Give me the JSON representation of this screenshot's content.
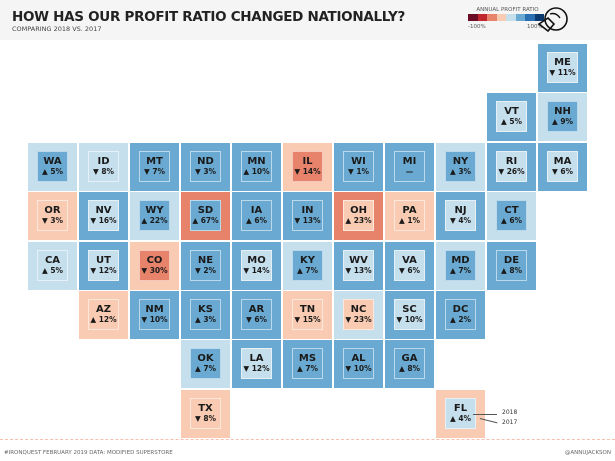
{
  "header": {
    "title": "HOW HAS OUR PROFIT RATIO CHANGED NATIONALLY?",
    "subtitle": "COMPARING 2018 VS. 2017"
  },
  "legend": {
    "title": "ANNUAL PROFIT RATIO",
    "min_label": "-100%",
    "max_label": "100%",
    "colors": [
      "#6b0d24",
      "#c0282d",
      "#e7836b",
      "#f9cbb2",
      "#c6dfed",
      "#6aaad2",
      "#2a6fb1",
      "#0c3a6e"
    ]
  },
  "palette": {
    "light-blue": "#c6dfed",
    "mid-blue": "#6aaad2",
    "salmon": "#f9cbb2",
    "red": "#e8836b"
  },
  "chart_data": {
    "type": "tile-map",
    "color_scale": {
      "metric": "Annual profit ratio",
      "range": [
        "-100%",
        "100%"
      ]
    },
    "annotation": {
      "year_2018": "2018",
      "year_2017": "2017"
    },
    "states": [
      {
        "abbr": "ME",
        "change": "▼ 11%",
        "outer": "mid-blue",
        "inner": "light-blue"
      },
      {
        "abbr": "VT",
        "change": "▲ 5%",
        "outer": "mid-blue",
        "inner": "light-blue"
      },
      {
        "abbr": "NH",
        "change": "▲ 9%",
        "outer": "light-blue",
        "inner": "mid-blue"
      },
      {
        "abbr": "WA",
        "change": "▲ 5%",
        "outer": "light-blue",
        "inner": "mid-blue"
      },
      {
        "abbr": "ID",
        "change": "▼ 8%",
        "outer": "light-blue",
        "inner": "light-blue"
      },
      {
        "abbr": "MT",
        "change": "▼ 7%",
        "outer": "mid-blue",
        "inner": "mid-blue"
      },
      {
        "abbr": "ND",
        "change": "▼ 3%",
        "outer": "mid-blue",
        "inner": "mid-blue"
      },
      {
        "abbr": "MN",
        "change": "▲ 10%",
        "outer": "mid-blue",
        "inner": "mid-blue"
      },
      {
        "abbr": "IL",
        "change": "▼ 14%",
        "outer": "salmon",
        "inner": "red"
      },
      {
        "abbr": "WI",
        "change": "▼ 1%",
        "outer": "mid-blue",
        "inner": "mid-blue"
      },
      {
        "abbr": "MI",
        "change": "—",
        "outer": "mid-blue",
        "inner": "mid-blue"
      },
      {
        "abbr": "NY",
        "change": "▲ 3%",
        "outer": "light-blue",
        "inner": "mid-blue"
      },
      {
        "abbr": "RI",
        "change": "▼ 26%",
        "outer": "mid-blue",
        "inner": "light-blue"
      },
      {
        "abbr": "MA",
        "change": "▼ 6%",
        "outer": "mid-blue",
        "inner": "light-blue"
      },
      {
        "abbr": "OR",
        "change": "▼ 3%",
        "outer": "salmon",
        "inner": "salmon"
      },
      {
        "abbr": "NV",
        "change": "▼ 16%",
        "outer": "mid-blue",
        "inner": "light-blue"
      },
      {
        "abbr": "WY",
        "change": "▲ 22%",
        "outer": "light-blue",
        "inner": "mid-blue"
      },
      {
        "abbr": "SD",
        "change": "▲ 67%",
        "outer": "red",
        "inner": "mid-blue"
      },
      {
        "abbr": "IA",
        "change": "▲ 6%",
        "outer": "mid-blue",
        "inner": "mid-blue"
      },
      {
        "abbr": "IN",
        "change": "▼ 13%",
        "outer": "mid-blue",
        "inner": "mid-blue"
      },
      {
        "abbr": "OH",
        "change": "▲ 23%",
        "outer": "red",
        "inner": "salmon"
      },
      {
        "abbr": "PA",
        "change": "▲ 1%",
        "outer": "salmon",
        "inner": "salmon"
      },
      {
        "abbr": "NJ",
        "change": "▼ 4%",
        "outer": "mid-blue",
        "inner": "light-blue"
      },
      {
        "abbr": "CT",
        "change": "▲ 6%",
        "outer": "light-blue",
        "inner": "mid-blue"
      },
      {
        "abbr": "CA",
        "change": "▲ 5%",
        "outer": "light-blue",
        "inner": "light-blue"
      },
      {
        "abbr": "UT",
        "change": "▼ 12%",
        "outer": "mid-blue",
        "inner": "light-blue"
      },
      {
        "abbr": "CO",
        "change": "▼ 30%",
        "outer": "salmon",
        "inner": "red"
      },
      {
        "abbr": "NE",
        "change": "▼ 2%",
        "outer": "mid-blue",
        "inner": "mid-blue"
      },
      {
        "abbr": "MO",
        "change": "▼ 14%",
        "outer": "mid-blue",
        "inner": "light-blue"
      },
      {
        "abbr": "KY",
        "change": "▲ 7%",
        "outer": "light-blue",
        "inner": "mid-blue"
      },
      {
        "abbr": "WV",
        "change": "▼ 13%",
        "outer": "mid-blue",
        "inner": "light-blue"
      },
      {
        "abbr": "VA",
        "change": "▼ 6%",
        "outer": "mid-blue",
        "inner": "light-blue"
      },
      {
        "abbr": "MD",
        "change": "▲ 7%",
        "outer": "light-blue",
        "inner": "mid-blue"
      },
      {
        "abbr": "DE",
        "change": "▲ 8%",
        "outer": "mid-blue",
        "inner": "mid-blue"
      },
      {
        "abbr": "AZ",
        "change": "▲ 12%",
        "outer": "salmon",
        "inner": "salmon"
      },
      {
        "abbr": "NM",
        "change": "▼ 10%",
        "outer": "mid-blue",
        "inner": "mid-blue"
      },
      {
        "abbr": "KS",
        "change": "▲ 3%",
        "outer": "mid-blue",
        "inner": "mid-blue"
      },
      {
        "abbr": "AR",
        "change": "▼ 6%",
        "outer": "mid-blue",
        "inner": "mid-blue"
      },
      {
        "abbr": "TN",
        "change": "▼ 15%",
        "outer": "salmon",
        "inner": "salmon"
      },
      {
        "abbr": "NC",
        "change": "▼ 23%",
        "outer": "light-blue",
        "inner": "salmon"
      },
      {
        "abbr": "SC",
        "change": "▼ 10%",
        "outer": "mid-blue",
        "inner": "light-blue"
      },
      {
        "abbr": "DC",
        "change": "▲ 2%",
        "outer": "mid-blue",
        "inner": "mid-blue"
      },
      {
        "abbr": "OK",
        "change": "▲ 7%",
        "outer": "light-blue",
        "inner": "mid-blue"
      },
      {
        "abbr": "LA",
        "change": "▼ 12%",
        "outer": "mid-blue",
        "inner": "light-blue"
      },
      {
        "abbr": "MS",
        "change": "▲ 7%",
        "outer": "mid-blue",
        "inner": "mid-blue"
      },
      {
        "abbr": "AL",
        "change": "▼ 10%",
        "outer": "mid-blue",
        "inner": "mid-blue"
      },
      {
        "abbr": "GA",
        "change": "▲ 8%",
        "outer": "mid-blue",
        "inner": "mid-blue"
      },
      {
        "abbr": "TX",
        "change": "▼ 8%",
        "outer": "salmon",
        "inner": "salmon"
      },
      {
        "abbr": "FL",
        "change": "▲ 4%",
        "outer": "salmon",
        "inner": "light-blue"
      }
    ]
  },
  "footer": {
    "left": "#IRONQUEST FEBRUARY 2019    DATA: MODIFIED SUPERSTORE",
    "right": "@ANNUJACKSON"
  }
}
